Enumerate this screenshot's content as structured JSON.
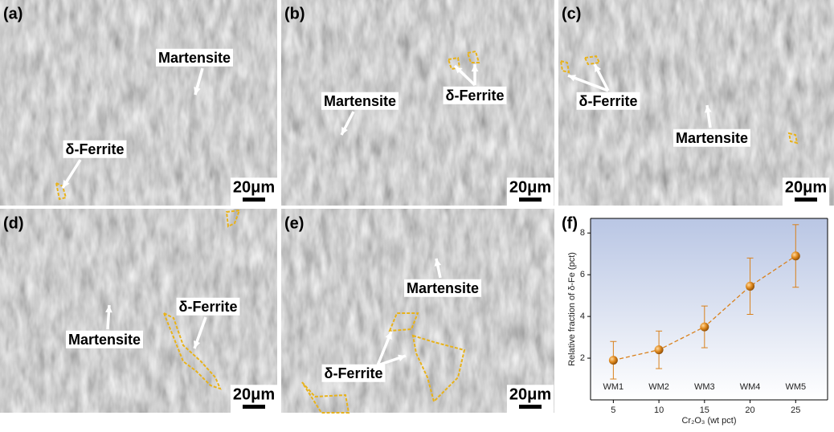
{
  "panels": [
    {
      "label": "(a)",
      "annotations": [
        {
          "text": "Martensite"
        },
        {
          "text": "δ-Ferrite"
        }
      ],
      "scale_bar": "20μm"
    },
    {
      "label": "(b)",
      "annotations": [
        {
          "text": "δ-Ferrite"
        },
        {
          "text": "Martensite"
        }
      ],
      "scale_bar": "20μm"
    },
    {
      "label": "(c)",
      "annotations": [
        {
          "text": "δ-Ferrite"
        },
        {
          "text": "Martensite"
        }
      ],
      "scale_bar": "20μm"
    },
    {
      "label": "(d)",
      "annotations": [
        {
          "text": "Martensite"
        },
        {
          "text": "δ-Ferrite"
        }
      ],
      "scale_bar": "20μm"
    },
    {
      "label": "(e)",
      "annotations": [
        {
          "text": "Martensite"
        },
        {
          "text": "δ-Ferrite"
        }
      ],
      "scale_bar": "20μm"
    }
  ],
  "chart_data": {
    "type": "line",
    "label": "(f)",
    "x_label": "Cr₂O₃ (wt pct)",
    "y_label": "Relative fraction of δ-Fe (pct)",
    "x": [
      5,
      10,
      15,
      20,
      25
    ],
    "series": [
      {
        "values": [
          1.9,
          2.4,
          3.5,
          5.45,
          6.9
        ],
        "errors": [
          0.9,
          0.9,
          1.0,
          1.35,
          1.5
        ],
        "color": "#d9801a",
        "point_labels": [
          "WM1",
          "WM2",
          "WM3",
          "WM4",
          "WM5"
        ]
      }
    ],
    "xlim": [
      2.5,
      28.5
    ],
    "xticks": [
      5,
      10,
      15,
      20,
      25
    ],
    "ylim": [
      0,
      8.7
    ],
    "yticks": [
      2,
      4,
      6,
      8
    ]
  }
}
